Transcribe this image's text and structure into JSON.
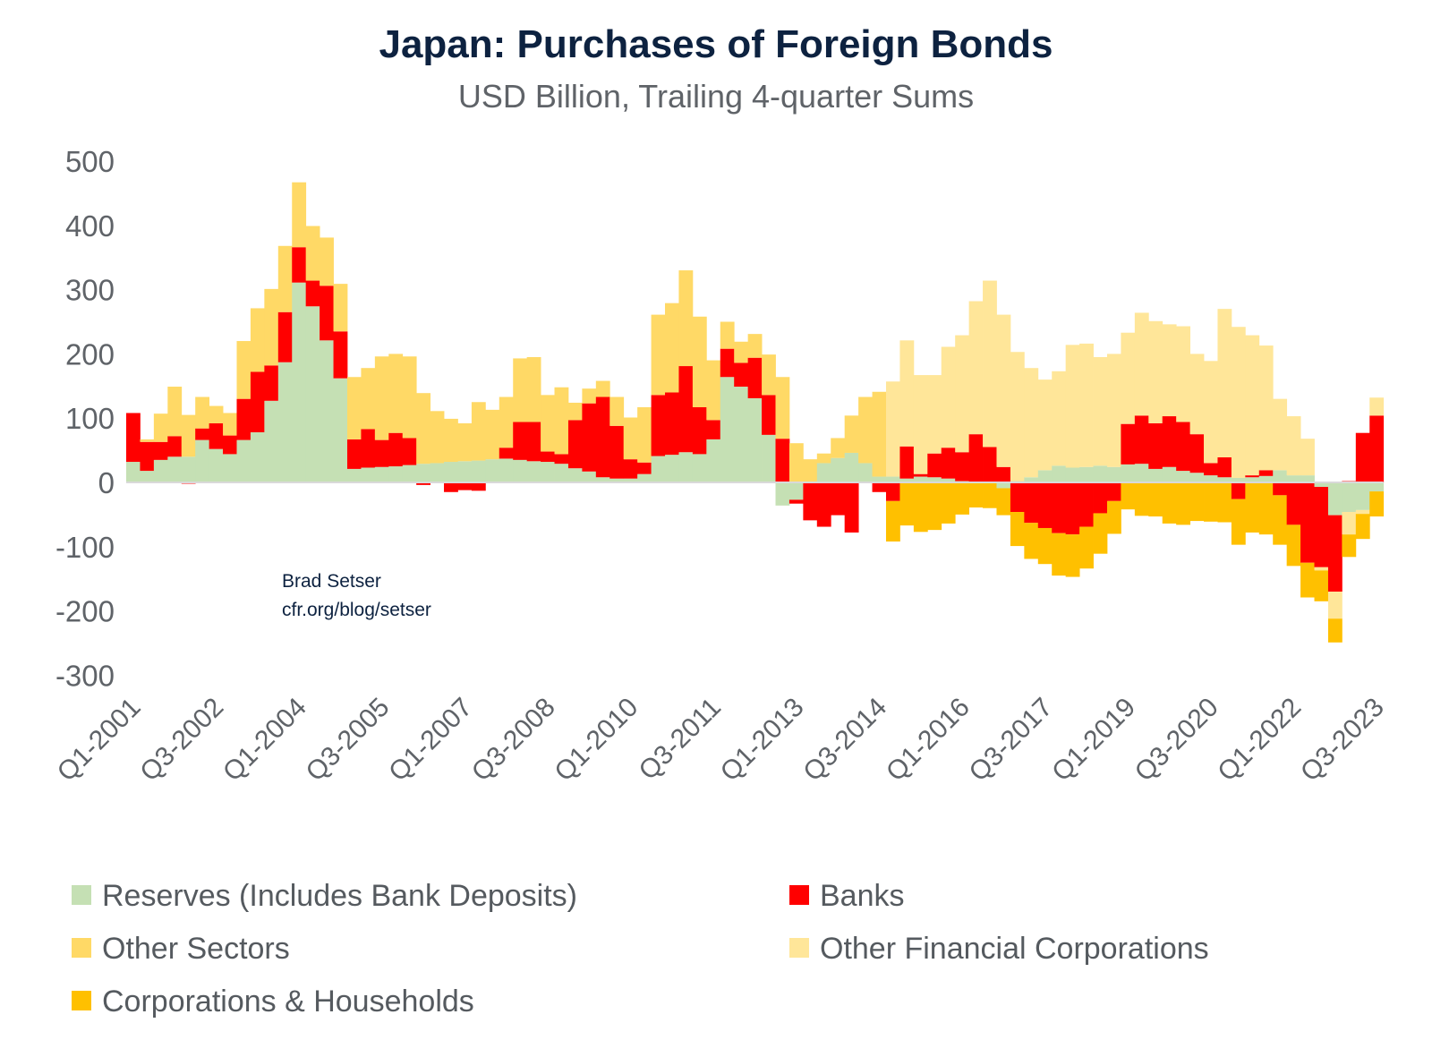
{
  "chart_data": {
    "type": "bar",
    "stacked": true,
    "title": "Japan: Purchases of Foreign Bonds",
    "subtitle": "USD Billion, Trailing 4-quarter Sums",
    "xlabel": "",
    "ylabel": "",
    "ylim": [
      -300,
      500
    ],
    "yticks": [
      500,
      400,
      300,
      200,
      100,
      0,
      -100,
      -200,
      -300
    ],
    "ytick_labels": [
      "500",
      "400",
      "300",
      "200",
      "100",
      "0",
      "-100",
      "-200",
      "-300"
    ],
    "grid": false,
    "legend_position": "bottom",
    "annotation": [
      "Brad Setser",
      "cfr.org/blog/setser"
    ],
    "xtick_labels": [
      "Q1-2001",
      "Q3-2002",
      "Q1-2004",
      "Q3-2005",
      "Q1-2007",
      "Q3-2008",
      "Q1-2010",
      "Q3-2011",
      "Q1-2013",
      "Q3-2014",
      "Q1-2016",
      "Q3-2017",
      "Q1-2019",
      "Q3-2020",
      "Q1-2022",
      "Q3-2023"
    ],
    "categories": [
      "Q1-2001",
      "Q2-2001",
      "Q3-2001",
      "Q4-2001",
      "Q1-2002",
      "Q2-2002",
      "Q3-2002",
      "Q4-2002",
      "Q1-2003",
      "Q2-2003",
      "Q3-2003",
      "Q4-2003",
      "Q1-2004",
      "Q2-2004",
      "Q3-2004",
      "Q4-2004",
      "Q1-2005",
      "Q2-2005",
      "Q3-2005",
      "Q4-2005",
      "Q1-2006",
      "Q2-2006",
      "Q3-2006",
      "Q4-2006",
      "Q1-2007",
      "Q2-2007",
      "Q3-2007",
      "Q4-2007",
      "Q1-2008",
      "Q2-2008",
      "Q3-2008",
      "Q4-2008",
      "Q1-2009",
      "Q2-2009",
      "Q3-2009",
      "Q4-2009",
      "Q1-2010",
      "Q2-2010",
      "Q3-2010",
      "Q4-2010",
      "Q1-2011",
      "Q2-2011",
      "Q3-2011",
      "Q4-2011",
      "Q1-2012",
      "Q2-2012",
      "Q3-2012",
      "Q4-2012",
      "Q1-2013",
      "Q2-2013",
      "Q3-2013",
      "Q4-2013",
      "Q1-2014",
      "Q2-2014",
      "Q3-2014",
      "Q4-2014",
      "Q1-2015",
      "Q2-2015",
      "Q3-2015",
      "Q4-2015",
      "Q1-2016",
      "Q2-2016",
      "Q3-2016",
      "Q4-2016",
      "Q1-2017",
      "Q2-2017",
      "Q3-2017",
      "Q4-2017",
      "Q1-2018",
      "Q2-2018",
      "Q3-2018",
      "Q4-2018",
      "Q1-2019",
      "Q2-2019",
      "Q3-2019",
      "Q4-2019",
      "Q1-2020",
      "Q2-2020",
      "Q3-2020",
      "Q4-2020",
      "Q1-2021",
      "Q2-2021",
      "Q3-2021",
      "Q4-2021",
      "Q1-2022",
      "Q2-2022",
      "Q3-2022",
      "Q4-2022",
      "Q1-2023",
      "Q2-2023",
      "Q3-2023"
    ],
    "series": [
      {
        "name": "Reserves (Includes Bank Deposits)",
        "color": "#c5e0b4",
        "values": [
          32,
          18,
          35,
          40,
          40,
          66,
          52,
          44,
          66,
          78,
          127,
          187,
          311,
          274,
          221,
          162,
          21,
          23,
          24,
          25,
          27,
          29,
          30,
          32,
          33,
          34,
          36,
          37,
          35,
          33,
          32,
          29,
          22,
          17,
          8,
          6,
          6,
          13,
          41,
          43,
          47,
          44,
          67,
          164,
          149,
          131,
          74,
          -36,
          -27,
          0,
          30,
          38,
          46,
          30,
          9,
          9,
          6,
          9,
          8,
          6,
          2,
          0,
          0,
          -9,
          2,
          8,
          19,
          26,
          23,
          24,
          26,
          24,
          28,
          29,
          21,
          24,
          18,
          15,
          11,
          8,
          7,
          8,
          10,
          19,
          11,
          11,
          -7,
          -51,
          -46,
          -43,
          -14
        ]
      },
      {
        "name": "Banks",
        "color": "#ff0000",
        "values": [
          76,
          45,
          28,
          32,
          -2,
          18,
          40,
          29,
          64,
          94,
          55,
          78,
          55,
          40,
          85,
          73,
          46,
          60,
          42,
          52,
          42,
          -4,
          0,
          -15,
          -12,
          -13,
          -1,
          17,
          59,
          61,
          16,
          15,
          75,
          106,
          125,
          82,
          30,
          18,
          95,
          97,
          134,
          73,
          30,
          44,
          37,
          63,
          62,
          68,
          -6,
          -59,
          -69,
          -51,
          -78,
          0,
          -15,
          -29,
          50,
          4,
          37,
          48,
          45,
          75,
          55,
          24,
          -46,
          -63,
          -71,
          -79,
          -81,
          -69,
          -48,
          -29,
          63,
          75,
          71,
          79,
          76,
          60,
          19,
          31,
          -26,
          3,
          9,
          -20,
          -66,
          -125,
          -125,
          -119,
          2,
          77,
          104
        ]
      },
      {
        "name": "Other Sectors",
        "color": "#ffd966",
        "values": [
          0,
          4,
          44,
          77,
          65,
          49,
          27,
          35,
          90,
          99,
          119,
          103,
          101,
          85,
          75,
          74,
          97,
          95,
          130,
          123,
          127,
          110,
          81,
          67,
          59,
          91,
          77,
          79,
          99,
          101,
          88,
          104,
          27,
          23,
          25,
          45,
          65,
          86,
          125,
          139,
          149,
          141,
          93,
          42,
          33,
          37,
          63,
          96,
          61,
          36,
          15,
          31,
          58,
          103,
          132,
          null,
          null,
          null,
          null,
          null,
          null,
          null,
          null,
          null,
          null,
          null,
          null,
          null,
          null,
          null,
          null,
          null,
          null,
          null,
          null,
          null,
          null,
          null,
          null,
          null,
          null,
          null,
          null,
          null,
          null,
          null,
          null,
          null,
          null,
          null,
          null
        ]
      },
      {
        "name": "Other Financial Corporations",
        "color": "#ffe699",
        "values": [
          null,
          null,
          null,
          null,
          null,
          null,
          null,
          null,
          null,
          null,
          null,
          null,
          null,
          null,
          null,
          null,
          null,
          null,
          null,
          null,
          null,
          null,
          null,
          null,
          null,
          null,
          null,
          null,
          null,
          null,
          null,
          null,
          null,
          null,
          null,
          null,
          null,
          null,
          null,
          null,
          null,
          null,
          null,
          null,
          null,
          null,
          null,
          null,
          null,
          null,
          null,
          null,
          null,
          null,
          null,
          148,
          165,
          154,
          122,
          157,
          182,
          207,
          259,
          237,
          201,
          170,
          141,
          147,
          191,
          192,
          169,
          176,
          142,
          160,
          159,
          143,
          149,
          125,
          159,
          231,
          235,
          218,
          194,
          111,
          92,
          57,
          -5,
          -42,
          -35,
          -6,
          28
        ]
      },
      {
        "name": "Corporations & Households",
        "color": "#ffc000",
        "values": [
          null,
          null,
          null,
          null,
          null,
          null,
          null,
          null,
          null,
          null,
          null,
          null,
          null,
          null,
          null,
          null,
          null,
          null,
          null,
          null,
          null,
          null,
          null,
          null,
          null,
          null,
          null,
          null,
          null,
          null,
          null,
          null,
          null,
          null,
          null,
          null,
          null,
          null,
          null,
          null,
          null,
          null,
          null,
          null,
          null,
          null,
          null,
          null,
          null,
          null,
          null,
          null,
          null,
          null,
          null,
          -63,
          -67,
          -77,
          -74,
          -64,
          -50,
          -39,
          -40,
          -42,
          -53,
          -56,
          -56,
          -66,
          -66,
          -65,
          -63,
          -51,
          -42,
          -52,
          -53,
          -64,
          -66,
          -60,
          -61,
          -62,
          -71,
          -78,
          -81,
          -77,
          -64,
          -54,
          -48,
          -37,
          -35,
          -39,
          -39
        ]
      }
    ]
  },
  "legend": {
    "items": [
      {
        "label": "Reserves (Includes Bank Deposits)",
        "color": "#c5e0b4"
      },
      {
        "label": "Banks",
        "color": "#ff0000"
      },
      {
        "label": "Other Sectors",
        "color": "#ffd966"
      },
      {
        "label": "Other Financial Corporations",
        "color": "#ffe699"
      },
      {
        "label": "Corporations & Households",
        "color": "#ffc000"
      }
    ]
  }
}
